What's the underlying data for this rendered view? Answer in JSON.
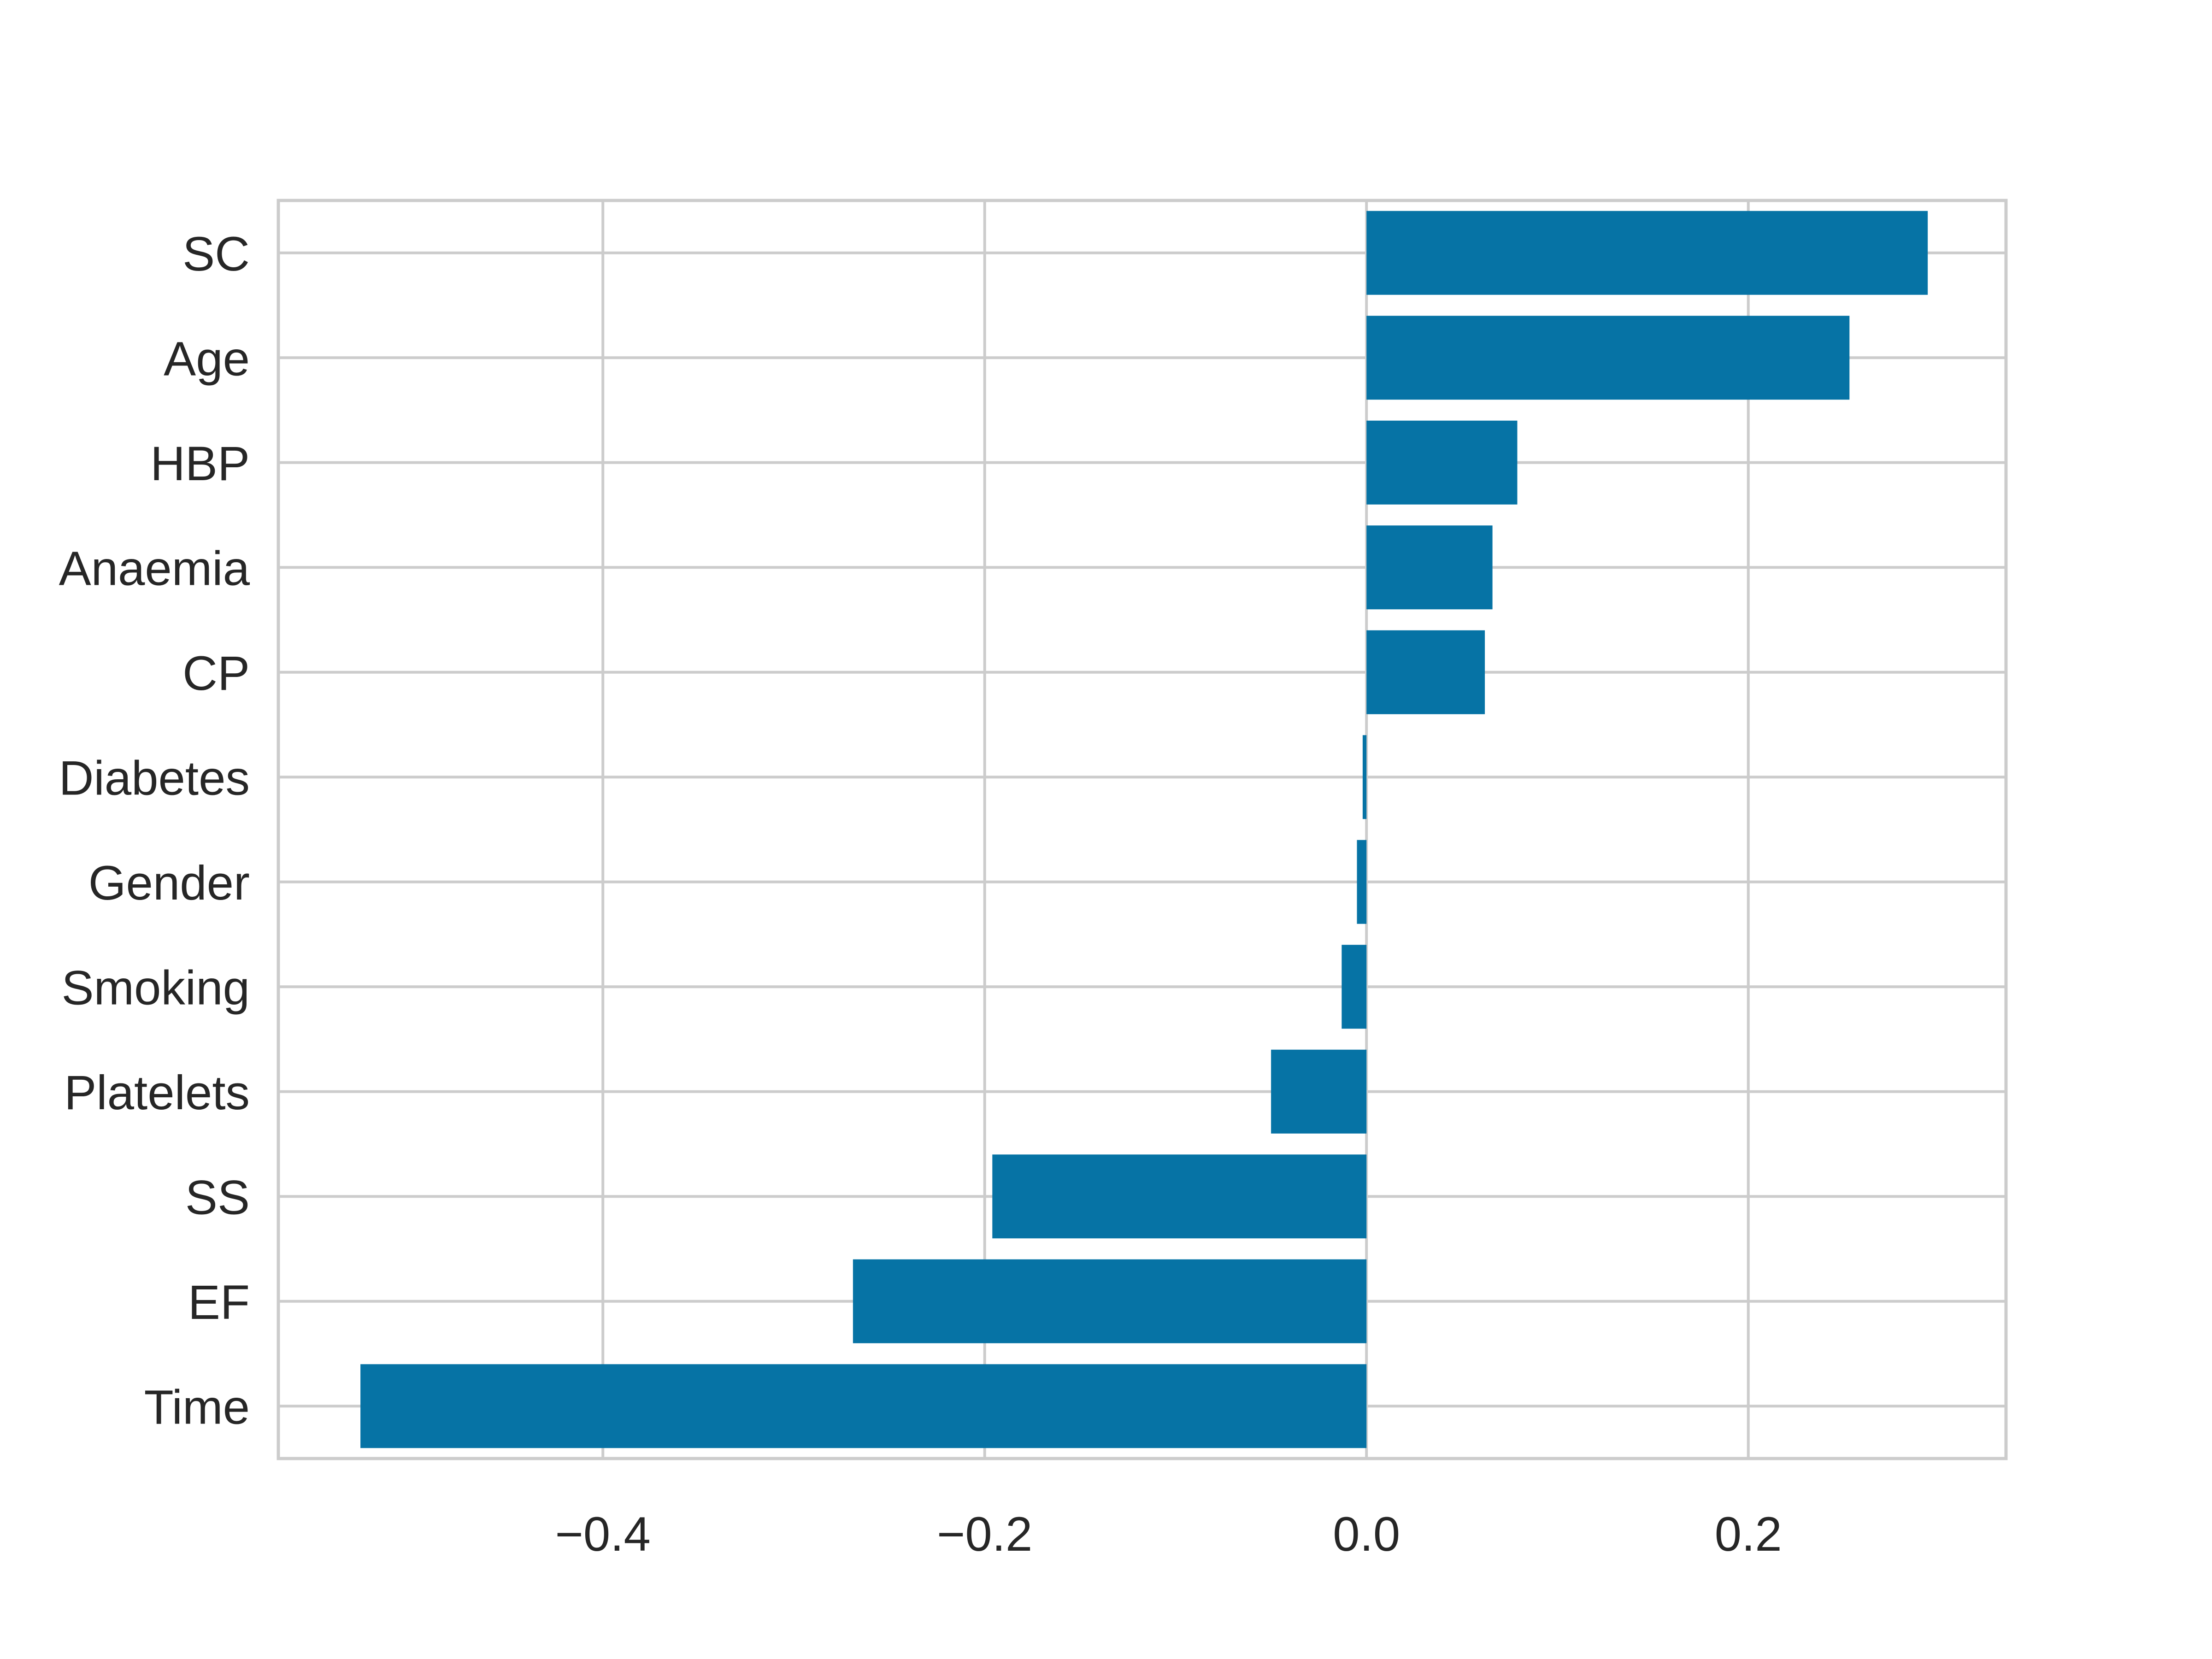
{
  "chart_data": {
    "type": "bar",
    "orientation": "horizontal",
    "categories": [
      "SC",
      "Age",
      "HBP",
      "Anaemia",
      "CP",
      "Diabetes",
      "Gender",
      "Smoking",
      "Platelets",
      "SS",
      "EF",
      "Time"
    ],
    "values": [
      0.294,
      0.253,
      0.079,
      0.066,
      0.062,
      -0.002,
      -0.005,
      -0.013,
      -0.05,
      -0.196,
      -0.269,
      -0.527
    ],
    "xlim": [
      -0.57,
      0.335
    ],
    "x_ticks": [
      -0.4,
      -0.2,
      0.0,
      0.2
    ],
    "x_tick_labels": [
      "−0.4",
      "−0.2",
      "0.0",
      "0.2"
    ],
    "title": "",
    "xlabel": "",
    "ylabel": "",
    "grid": true,
    "colors": {
      "bar": "#0673a5",
      "grid": "#cccccc",
      "frame": "#cccccc",
      "text": "#262626",
      "background": "#ffffff"
    }
  }
}
